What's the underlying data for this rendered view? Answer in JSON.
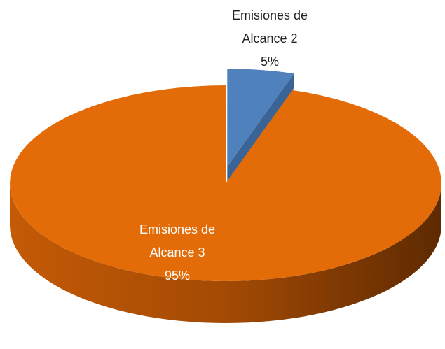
{
  "chart_data": {
    "type": "pie",
    "categories": [
      "Emisiones de Alcance 2",
      "Emisiones de Alcance 3"
    ],
    "values": [
      5,
      95
    ],
    "value_labels": [
      "5%",
      "95%"
    ],
    "colors": [
      "#4f81bd",
      "#e36c09"
    ],
    "start_angle": 0,
    "exploded": [
      true,
      false
    ],
    "three_d": true
  }
}
